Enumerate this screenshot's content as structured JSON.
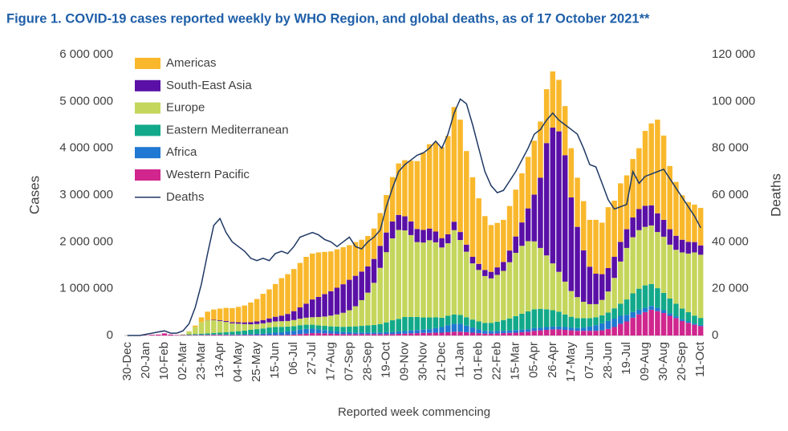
{
  "chart_data": {
    "type": "bar",
    "stacked": true,
    "title": "Figure 1. COVID-19 cases reported weekly by WHO Region, and global deaths, as of 17 October 2021**",
    "xlabel": "Reported week commencing",
    "ylabel": "Cases",
    "y2label": "Deaths",
    "categories": [
      "30-Dec",
      null,
      null,
      "20-Jan",
      null,
      null,
      "10-Feb",
      null,
      null,
      "02-Mar",
      null,
      null,
      "23-Mar",
      null,
      null,
      "13-Apr",
      null,
      null,
      "04-May",
      null,
      null,
      "25-May",
      null,
      null,
      "15-Jun",
      null,
      null,
      "06-Jul",
      null,
      null,
      "27-Jul",
      null,
      null,
      "17-Aug",
      null,
      null,
      "07-Sep",
      null,
      null,
      "28-Sep",
      null,
      null,
      "19-Oct",
      null,
      null,
      "09-Nov",
      null,
      null,
      "30-Nov",
      null,
      null,
      "21-Dec",
      null,
      null,
      "11-Jan",
      null,
      null,
      "01-Feb",
      null,
      null,
      "22-Feb",
      null,
      null,
      "15-Mar",
      null,
      null,
      "05-Apr",
      null,
      null,
      "26-Apr",
      null,
      null,
      "17-May",
      null,
      null,
      "07-Jun",
      null,
      null,
      "28-Jun",
      null,
      null,
      "19-Jul",
      null,
      null,
      "09-Aug",
      null,
      null,
      "30-Aug",
      null,
      null,
      "20-Sep",
      null,
      null,
      "11-Oct"
    ],
    "series": [
      {
        "name": "Americas",
        "color": "#f9b82c",
        "values": [
          0,
          0,
          0,
          0,
          0,
          0,
          0,
          0,
          0,
          0,
          5000,
          30000,
          100000,
          180000,
          220000,
          250000,
          280000,
          300000,
          330000,
          360000,
          420000,
          480000,
          560000,
          620000,
          700000,
          800000,
          850000,
          900000,
          950000,
          1000000,
          980000,
          950000,
          900000,
          850000,
          820000,
          790000,
          740000,
          720000,
          680000,
          650000,
          650000,
          700000,
          800000,
          950000,
          1100000,
          1200000,
          1300000,
          1450000,
          1650000,
          1800000,
          1900000,
          1950000,
          2100000,
          2450000,
          2400000,
          2000000,
          1700000,
          1400000,
          1150000,
          1000000,
          950000,
          900000,
          950000,
          1000000,
          1050000,
          1100000,
          1150000,
          1200000,
          1150000,
          1200000,
          1100000,
          1050000,
          1050000,
          1050000,
          1050000,
          1000000,
          1150000,
          1100000,
          1300000,
          1200000,
          1250000,
          1150000,
          1250000,
          1300000,
          1600000,
          1750000,
          2000000,
          1800000,
          1350000,
          1150000,
          950000,
          850000,
          800000,
          800000
        ]
      },
      {
        "name": "South-East Asia",
        "color": "#5a10a6",
        "values": [
          0,
          0,
          0,
          0,
          0,
          0,
          0,
          0,
          0,
          0,
          0,
          0,
          0,
          5000,
          10000,
          15000,
          20000,
          25000,
          30000,
          35000,
          45000,
          55000,
          70000,
          85000,
          100000,
          120000,
          150000,
          190000,
          240000,
          300000,
          380000,
          430000,
          480000,
          520000,
          570000,
          610000,
          650000,
          650000,
          610000,
          560000,
          510000,
          470000,
          420000,
          360000,
          320000,
          300000,
          290000,
          280000,
          270000,
          250000,
          230000,
          200000,
          190000,
          180000,
          170000,
          150000,
          140000,
          130000,
          130000,
          140000,
          160000,
          190000,
          250000,
          350000,
          500000,
          700000,
          1000000,
          1500000,
          2400000,
          2900000,
          3000000,
          2700000,
          2000000,
          1500000,
          1100000,
          800000,
          650000,
          550000,
          500000,
          450000,
          420000,
          400000,
          420000,
          450000,
          450000,
          430000,
          400000,
          360000,
          330000,
          300000,
          270000,
          250000,
          220000,
          200000
        ]
      },
      {
        "name": "Europe",
        "color": "#c5d65c",
        "values": [
          0,
          0,
          0,
          0,
          0,
          0,
          0,
          0,
          0,
          10000,
          60000,
          150000,
          250000,
          280000,
          270000,
          250000,
          220000,
          180000,
          160000,
          140000,
          120000,
          110000,
          110000,
          110000,
          120000,
          120000,
          120000,
          130000,
          140000,
          150000,
          160000,
          180000,
          200000,
          230000,
          260000,
          300000,
          350000,
          430000,
          550000,
          700000,
          900000,
          1200000,
          1500000,
          1750000,
          1900000,
          1850000,
          1750000,
          1600000,
          1600000,
          1650000,
          1600000,
          1500000,
          1550000,
          1800000,
          1600000,
          1400000,
          1200000,
          1100000,
          1000000,
          950000,
          1000000,
          1050000,
          1200000,
          1350000,
          1450000,
          1500000,
          1450000,
          1300000,
          1150000,
          1000000,
          850000,
          700000,
          550000,
          450000,
          350000,
          300000,
          280000,
          330000,
          450000,
          650000,
          900000,
          1100000,
          1200000,
          1250000,
          1250000,
          1250000,
          1200000,
          1200000,
          1150000,
          1150000,
          1200000,
          1250000,
          1350000,
          1350000
        ]
      },
      {
        "name": "Eastern Mediterranean",
        "color": "#12a98a",
        "values": [
          0,
          0,
          0,
          0,
          0,
          0,
          0,
          0,
          0,
          5000,
          15000,
          20000,
          25000,
          30000,
          35000,
          40000,
          50000,
          60000,
          70000,
          80000,
          90000,
          100000,
          110000,
          120000,
          120000,
          115000,
          105000,
          100000,
          95000,
          90000,
          85000,
          85000,
          90000,
          100000,
          105000,
          110000,
          120000,
          130000,
          140000,
          150000,
          160000,
          180000,
          210000,
          250000,
          270000,
          300000,
          290000,
          280000,
          260000,
          250000,
          230000,
          200000,
          200000,
          200000,
          190000,
          180000,
          170000,
          170000,
          170000,
          180000,
          200000,
          230000,
          260000,
          300000,
          340000,
          380000,
          400000,
          400000,
          380000,
          350000,
          320000,
          270000,
          230000,
          210000,
          200000,
          180000,
          170000,
          170000,
          180000,
          220000,
          260000,
          330000,
          400000,
          450000,
          480000,
          470000,
          420000,
          370000,
          320000,
          270000,
          230000,
          200000,
          170000,
          150000
        ]
      },
      {
        "name": "Africa",
        "color": "#1f78d1",
        "values": [
          0,
          0,
          0,
          0,
          0,
          0,
          0,
          0,
          0,
          0,
          0,
          2000,
          3000,
          4000,
          5000,
          5000,
          8000,
          10000,
          12000,
          15000,
          20000,
          25000,
          30000,
          40000,
          50000,
          60000,
          70000,
          80000,
          95000,
          100000,
          95000,
          80000,
          70000,
          55000,
          50000,
          45000,
          40000,
          35000,
          35000,
          35000,
          35000,
          35000,
          40000,
          45000,
          50000,
          55000,
          60000,
          65000,
          70000,
          80000,
          100000,
          120000,
          150000,
          170000,
          170000,
          140000,
          110000,
          80000,
          60000,
          50000,
          50000,
          50000,
          50000,
          55000,
          55000,
          55000,
          60000,
          60000,
          60000,
          60000,
          60000,
          60000,
          60000,
          60000,
          70000,
          90000,
          120000,
          150000,
          170000,
          180000,
          170000,
          140000,
          120000,
          100000,
          90000,
          80000,
          70000,
          60000,
          50000,
          40000,
          35000,
          30000,
          25000,
          25000
        ]
      },
      {
        "name": "Western Pacific",
        "color": "#d0268e",
        "values": [
          0,
          0,
          0,
          5000,
          15000,
          20000,
          45000,
          20000,
          10000,
          10000,
          10000,
          10000,
          10000,
          10000,
          15000,
          15000,
          12000,
          10000,
          10000,
          10000,
          10000,
          10000,
          10000,
          10000,
          10000,
          10000,
          15000,
          20000,
          30000,
          40000,
          50000,
          50000,
          45000,
          40000,
          35000,
          30000,
          30000,
          30000,
          30000,
          30000,
          30000,
          30000,
          30000,
          30000,
          35000,
          40000,
          45000,
          50000,
          55000,
          55000,
          60000,
          60000,
          70000,
          80000,
          80000,
          70000,
          60000,
          50000,
          40000,
          40000,
          45000,
          50000,
          55000,
          60000,
          70000,
          80000,
          100000,
          110000,
          120000,
          130000,
          130000,
          120000,
          110000,
          100000,
          100000,
          100000,
          100000,
          110000,
          140000,
          180000,
          250000,
          300000,
          380000,
          450000,
          500000,
          550000,
          520000,
          480000,
          420000,
          370000,
          310000,
          270000,
          230000,
          200000
        ]
      },
      {
        "name": "Deaths",
        "color": "#1f3864",
        "type": "line",
        "axis": "y2",
        "values": [
          0,
          0,
          0,
          500,
          1000,
          1500,
          2000,
          1000,
          1000,
          2000,
          5000,
          12000,
          22000,
          35000,
          47000,
          50000,
          44000,
          40000,
          38000,
          36000,
          33000,
          32000,
          33000,
          32000,
          35000,
          36000,
          35000,
          38000,
          42000,
          43000,
          44000,
          43000,
          41000,
          40000,
          38000,
          40000,
          42000,
          38000,
          37000,
          40000,
          42000,
          45000,
          55000,
          63000,
          70000,
          73000,
          75000,
          77000,
          78000,
          80000,
          83000,
          80000,
          86000,
          95000,
          101000,
          99000,
          90000,
          80000,
          70000,
          64000,
          61000,
          62000,
          66000,
          70000,
          75000,
          80000,
          86000,
          88000,
          92000,
          95000,
          92000,
          90000,
          88000,
          86000,
          80000,
          73000,
          72000,
          65000,
          58000,
          54000,
          55000,
          56000,
          70000,
          65000,
          68000,
          69000,
          70000,
          71000,
          67000,
          63000,
          59000,
          55000,
          51000,
          46000
        ]
      }
    ],
    "ylim": [
      0,
      6000000
    ],
    "yticks": [
      0,
      {
        "value": 1000000,
        "label": "1 000 000"
      },
      {
        "value": 2000000,
        "label": "2 000 000"
      },
      {
        "value": 3000000,
        "label": "3 000 000"
      },
      {
        "value": 4000000,
        "label": "4 000 000"
      },
      {
        "value": 5000000,
        "label": "5 000 000"
      },
      {
        "value": 6000000,
        "label": "6 000 000"
      }
    ],
    "y2lim": [
      0,
      120000
    ],
    "y2ticks": [
      0,
      {
        "value": 20000,
        "label": "20 000"
      },
      {
        "value": 40000,
        "label": "40 000"
      },
      {
        "value": 60000,
        "label": "60 000"
      },
      {
        "value": 80000,
        "label": "80 000"
      },
      {
        "value": 100000,
        "label": "100 000"
      },
      {
        "value": 120000,
        "label": "120 000"
      }
    ],
    "grid": false,
    "legend": "upper left"
  }
}
